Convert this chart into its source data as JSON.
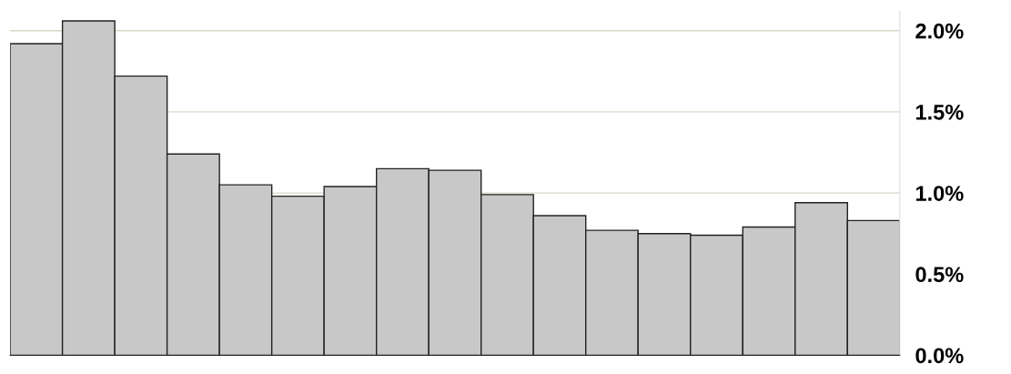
{
  "chart_data": {
    "type": "bar",
    "categories": [
      null,
      null,
      null,
      null,
      null,
      null,
      null,
      null,
      null,
      null,
      null,
      null,
      null,
      null,
      null,
      null,
      null
    ],
    "values": [
      1.92,
      2.06,
      1.72,
      1.24,
      1.05,
      0.98,
      1.04,
      1.15,
      1.14,
      0.99,
      0.86,
      0.77,
      0.75,
      0.74,
      0.79,
      0.94,
      0.83
    ],
    "color": "#c8c8c8",
    "ylim": [
      0,
      2.12
    ],
    "yticks": [
      {
        "value": 0,
        "label": "0.0%"
      },
      {
        "value": 0.5,
        "label": "0.5%"
      },
      {
        "value": 1.0,
        "label": "1.0%"
      },
      {
        "value": 1.5,
        "label": "1.5%"
      },
      {
        "value": 2.0,
        "label": "2.0%"
      }
    ],
    "grid": "y",
    "tick_labels": "y"
  }
}
